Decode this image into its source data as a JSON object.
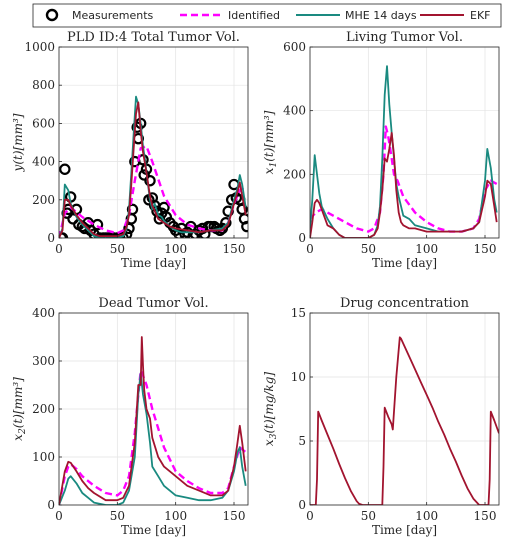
{
  "legend": {
    "entries": [
      {
        "label": "Measurements",
        "style": "marker",
        "color": "#000000"
      },
      {
        "label": "Identified",
        "style": "dashed",
        "color": "#ff00ff"
      },
      {
        "label": "MHE 14 days",
        "style": "line",
        "color": "#1a8a80"
      },
      {
        "label": "EKF",
        "style": "line",
        "color": "#a2142f"
      }
    ]
  },
  "chart_data": [
    {
      "type": "line",
      "title": "PLD ID:4 Total Tumor Vol.",
      "xlabel": "Time [day]",
      "ylabel": "y(t)[mm³]",
      "xlim": [
        0,
        162
      ],
      "ylim": [
        0,
        1000
      ],
      "xticks": [
        0,
        50,
        100,
        150
      ],
      "yticks": [
        0,
        200,
        400,
        600,
        800,
        1000
      ],
      "grid": true,
      "series": [
        {
          "name": "Measurements",
          "kind": "markers",
          "color": "#000000",
          "x": [
            2,
            3,
            5,
            7,
            8,
            10,
            12,
            15,
            17,
            20,
            22,
            25,
            27,
            30,
            33,
            35,
            38,
            40,
            42,
            45,
            47,
            50,
            52,
            55,
            58,
            60,
            62,
            63,
            65,
            67,
            68,
            70,
            72,
            73,
            75,
            77,
            78,
            80,
            82,
            84,
            86,
            88,
            90,
            92,
            95,
            98,
            100,
            103,
            105,
            108,
            110,
            113,
            115,
            117,
            120,
            123,
            125,
            128,
            130,
            133,
            135,
            138,
            140,
            143,
            145,
            148,
            150,
            152,
            155,
            157,
            159,
            161
          ],
          "y": [
            0,
            0,
            360,
            130,
            150,
            215,
            100,
            150,
            70,
            60,
            50,
            80,
            40,
            20,
            70,
            0,
            0,
            0,
            0,
            0,
            0,
            0,
            0,
            0,
            20,
            50,
            100,
            150,
            400,
            580,
            520,
            600,
            410,
            330,
            360,
            200,
            300,
            210,
            170,
            140,
            100,
            130,
            160,
            110,
            80,
            60,
            40,
            20,
            50,
            20,
            30,
            60,
            10,
            20,
            40,
            50,
            20,
            60,
            60,
            60,
            50,
            40,
            50,
            80,
            140,
            200,
            280,
            210,
            200,
            150,
            100,
            60
          ]
        },
        {
          "name": "Identified",
          "kind": "dashed",
          "color": "#ff00ff",
          "x": [
            0,
            5,
            10,
            20,
            30,
            40,
            50,
            55,
            60,
            65,
            70,
            75,
            80,
            90,
            100,
            110,
            120,
            130,
            140,
            145,
            150,
            155,
            160
          ],
          "y": [
            0,
            130,
            160,
            110,
            70,
            40,
            25,
            40,
            120,
            300,
            470,
            480,
            400,
            220,
            120,
            70,
            50,
            40,
            40,
            80,
            180,
            250,
            270
          ]
        },
        {
          "name": "MHE 14 days",
          "kind": "line",
          "color": "#1a8a80",
          "x": [
            0,
            3,
            5,
            8,
            10,
            15,
            20,
            25,
            30,
            35,
            40,
            45,
            50,
            55,
            58,
            60,
            62,
            64,
            66,
            68,
            70,
            72,
            74,
            76,
            78,
            80,
            82,
            85,
            88,
            90,
            95,
            100,
            105,
            110,
            120,
            130,
            140,
            145,
            150,
            153,
            155,
            157,
            160
          ],
          "y": [
            0,
            50,
            280,
            250,
            180,
            110,
            70,
            40,
            10,
            0,
            0,
            0,
            0,
            10,
            50,
            150,
            340,
            550,
            740,
            700,
            600,
            480,
            400,
            290,
            200,
            150,
            180,
            120,
            110,
            90,
            60,
            40,
            30,
            30,
            30,
            40,
            50,
            80,
            200,
            260,
            330,
            280,
            160
          ]
        },
        {
          "name": "EKF",
          "kind": "line",
          "color": "#a2142f",
          "x": [
            0,
            3,
            5,
            8,
            10,
            15,
            20,
            25,
            30,
            35,
            40,
            45,
            50,
            55,
            58,
            60,
            62,
            64,
            66,
            68,
            70,
            72,
            74,
            76,
            78,
            80,
            85,
            90,
            95,
            100,
            110,
            120,
            130,
            140,
            145,
            150,
            153,
            155,
            157,
            160
          ],
          "y": [
            0,
            40,
            200,
            200,
            170,
            120,
            80,
            50,
            20,
            10,
            10,
            10,
            10,
            20,
            60,
            120,
            280,
            470,
            650,
            710,
            560,
            450,
            380,
            300,
            220,
            170,
            100,
            80,
            60,
            50,
            40,
            30,
            40,
            40,
            70,
            180,
            240,
            290,
            220,
            120
          ]
        }
      ]
    },
    {
      "type": "line",
      "title": "Living Tumor Vol.",
      "xlabel": "Time [day]",
      "ylabel": "x₁(t)[mm³]",
      "xlim": [
        0,
        162
      ],
      "ylim": [
        0,
        600
      ],
      "xticks": [
        0,
        50,
        100,
        150
      ],
      "yticks": [
        0,
        200,
        400,
        600
      ],
      "grid": true,
      "series": [
        {
          "name": "Identified",
          "kind": "dashed",
          "color": "#ff00ff",
          "x": [
            0,
            5,
            10,
            20,
            30,
            40,
            50,
            55,
            60,
            63,
            65,
            67,
            70,
            72,
            75,
            80,
            90,
            100,
            110,
            120,
            130,
            140,
            145,
            150,
            155,
            160
          ],
          "y": [
            60,
            80,
            90,
            70,
            50,
            30,
            20,
            30,
            80,
            200,
            350,
            320,
            250,
            200,
            180,
            130,
            80,
            50,
            30,
            20,
            20,
            30,
            60,
            150,
            180,
            170
          ]
        },
        {
          "name": "MHE 14 days",
          "kind": "line",
          "color": "#1a8a80",
          "x": [
            0,
            2,
            4,
            6,
            8,
            10,
            15,
            20,
            25,
            30,
            35,
            40,
            50,
            55,
            58,
            60,
            62,
            64,
            66,
            68,
            70,
            72,
            74,
            76,
            78,
            80,
            85,
            90,
            100,
            110,
            120,
            130,
            140,
            145,
            150,
            152,
            155,
            158,
            160
          ],
          "y": [
            30,
            120,
            260,
            200,
            140,
            100,
            60,
            30,
            10,
            0,
            0,
            0,
            0,
            10,
            40,
            100,
            250,
            450,
            540,
            420,
            330,
            250,
            170,
            130,
            100,
            70,
            60,
            40,
            30,
            20,
            20,
            20,
            30,
            50,
            180,
            280,
            220,
            120,
            80
          ]
        },
        {
          "name": "EKF",
          "kind": "line",
          "color": "#a2142f",
          "x": [
            0,
            2,
            4,
            6,
            8,
            10,
            15,
            20,
            25,
            30,
            35,
            40,
            50,
            55,
            58,
            60,
            62,
            64,
            66,
            68,
            70,
            72,
            74,
            76,
            78,
            80,
            85,
            90,
            100,
            110,
            120,
            130,
            140,
            145,
            150,
            152,
            155,
            158,
            160
          ],
          "y": [
            0,
            50,
            110,
            120,
            110,
            90,
            40,
            30,
            10,
            0,
            0,
            0,
            0,
            10,
            30,
            80,
            150,
            250,
            240,
            280,
            330,
            260,
            150,
            80,
            50,
            40,
            30,
            30,
            20,
            20,
            20,
            20,
            30,
            50,
            130,
            180,
            170,
            100,
            50
          ]
        }
      ]
    },
    {
      "type": "line",
      "title": "Dead Tumor Vol.",
      "xlabel": "Time [day]",
      "ylabel": "x₂(t)[mm³]",
      "xlim": [
        0,
        162
      ],
      "ylim": [
        0,
        400
      ],
      "xticks": [
        0,
        50,
        100,
        150
      ],
      "yticks": [
        0,
        100,
        200,
        300,
        400
      ],
      "grid": true,
      "series": [
        {
          "name": "Identified",
          "kind": "dashed",
          "color": "#ff00ff",
          "x": [
            0,
            5,
            8,
            10,
            15,
            20,
            30,
            40,
            50,
            55,
            60,
            65,
            68,
            70,
            72,
            75,
            80,
            90,
            100,
            110,
            120,
            130,
            140,
            145,
            150,
            155,
            160
          ],
          "y": [
            0,
            60,
            80,
            85,
            75,
            60,
            40,
            25,
            20,
            30,
            60,
            150,
            230,
            280,
            270,
            250,
            200,
            120,
            70,
            50,
            35,
            25,
            25,
            35,
            80,
            120,
            110
          ]
        },
        {
          "name": "MHE 14 days",
          "kind": "line",
          "color": "#1a8a80",
          "x": [
            0,
            5,
            8,
            10,
            15,
            20,
            25,
            30,
            40,
            50,
            55,
            60,
            65,
            68,
            70,
            72,
            75,
            78,
            80,
            85,
            90,
            100,
            110,
            120,
            130,
            140,
            145,
            150,
            153,
            155,
            157,
            160
          ],
          "y": [
            0,
            30,
            55,
            60,
            45,
            25,
            15,
            5,
            0,
            0,
            5,
            30,
            100,
            230,
            275,
            230,
            190,
            130,
            80,
            60,
            40,
            20,
            15,
            10,
            10,
            15,
            30,
            70,
            110,
            120,
            80,
            40
          ]
        },
        {
          "name": "EKF",
          "kind": "line",
          "color": "#a2142f",
          "x": [
            0,
            5,
            8,
            10,
            15,
            20,
            25,
            30,
            40,
            50,
            55,
            60,
            65,
            68,
            70,
            71,
            72,
            73,
            75,
            78,
            80,
            85,
            90,
            100,
            110,
            120,
            130,
            140,
            145,
            150,
            153,
            155,
            157,
            160
          ],
          "y": [
            0,
            70,
            90,
            88,
            70,
            50,
            35,
            25,
            10,
            10,
            15,
            40,
            130,
            250,
            250,
            350,
            290,
            240,
            200,
            180,
            140,
            100,
            80,
            60,
            40,
            30,
            20,
            20,
            30,
            80,
            130,
            165,
            130,
            70
          ]
        }
      ]
    },
    {
      "type": "line",
      "title": "Drug concentration",
      "xlabel": "Time [day]",
      "ylabel": "x₃(t)[mg/kg]",
      "xlim": [
        0,
        162
      ],
      "ylim": [
        0,
        15
      ],
      "xticks": [
        0,
        50,
        100,
        150
      ],
      "yticks": [
        0,
        5,
        10,
        15
      ],
      "grid": true,
      "series": [
        {
          "name": "EKF",
          "kind": "line",
          "color": "#a2142f",
          "x": [
            0,
            5,
            6,
            7,
            10,
            15,
            20,
            25,
            30,
            35,
            40,
            42,
            45,
            50,
            55,
            60,
            62,
            63,
            64,
            67,
            70,
            71,
            74,
            77,
            78,
            79,
            85,
            90,
            95,
            100,
            105,
            110,
            115,
            120,
            125,
            130,
            135,
            140,
            145,
            150,
            153,
            154,
            155,
            158,
            162
          ],
          "y": [
            0,
            0,
            2,
            7.3,
            6.6,
            5.5,
            4.4,
            3.2,
            2.1,
            1.1,
            0.3,
            0.1,
            0,
            0,
            0,
            0,
            0,
            3,
            7.6,
            6.9,
            6.3,
            5.9,
            10,
            13.1,
            13,
            12.8,
            11.6,
            10.6,
            9.6,
            8.6,
            7.6,
            6.5,
            5.5,
            4.4,
            3.4,
            2.3,
            1.3,
            0.5,
            0,
            0,
            0,
            2,
            7.3,
            6.6,
            5.6
          ]
        }
      ]
    }
  ]
}
